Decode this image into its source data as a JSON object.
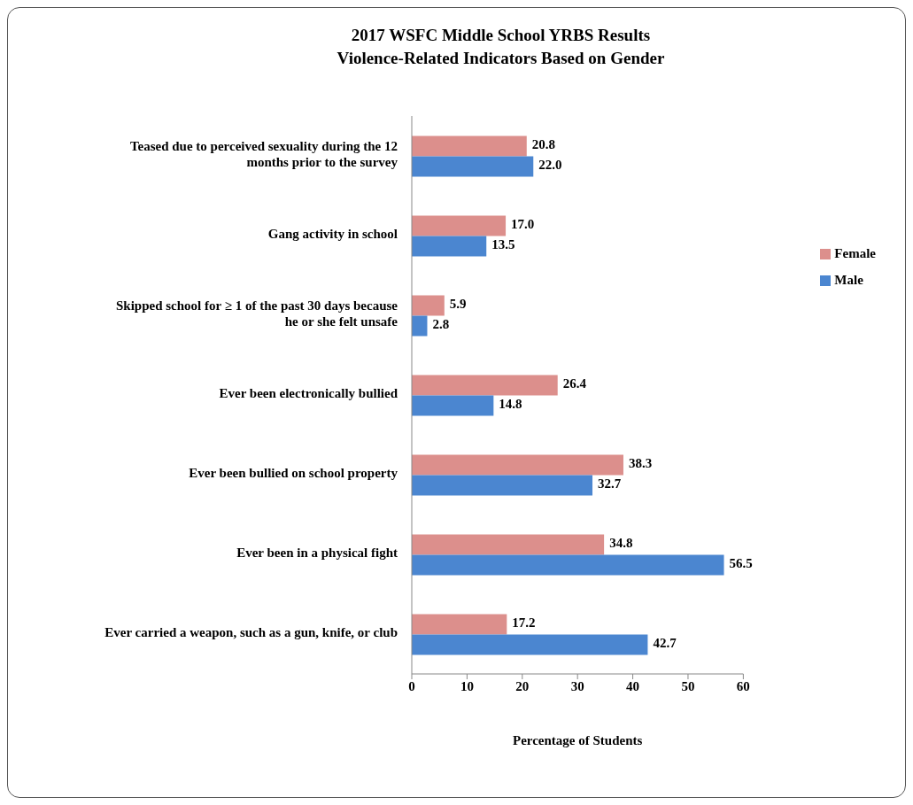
{
  "chart_data": {
    "type": "bar",
    "orientation": "horizontal",
    "title": "2017 WSFC Middle School YRBS Results",
    "subtitle": "Violence-Related Indicators Based on Gender",
    "xlabel": "Percentage of Students",
    "categories": [
      "Teased due to perceived sexuality during the 12 months prior to the survey",
      "Gang activity in school",
      "Skipped school for ≥ 1 of the past 30 days because he or she felt unsafe",
      "Ever been electronically bullied",
      "Ever been bullied on school property",
      "Ever been in a physical fight",
      "Ever carried a weapon, such as a gun, knife, or club"
    ],
    "series": [
      {
        "name": "Female",
        "color": "#dc8f8c",
        "values": [
          20.8,
          17.0,
          5.9,
          26.4,
          38.3,
          34.8,
          17.2
        ],
        "value_labels": [
          "20.8",
          "17.0",
          "5.9",
          "26.4",
          "38.3",
          "34.8",
          "17.2"
        ]
      },
      {
        "name": "Male",
        "color": "#4b86d0",
        "values": [
          22.0,
          13.5,
          2.8,
          14.8,
          32.7,
          56.5,
          42.7
        ],
        "value_labels": [
          "22.0",
          "13.5",
          "2.8",
          "14.8",
          "32.7",
          "56.5",
          "42.7"
        ]
      }
    ],
    "xlim": [
      0,
      60
    ],
    "xticks": [
      0,
      10,
      20,
      30,
      40,
      50,
      60
    ],
    "legend": "right"
  }
}
